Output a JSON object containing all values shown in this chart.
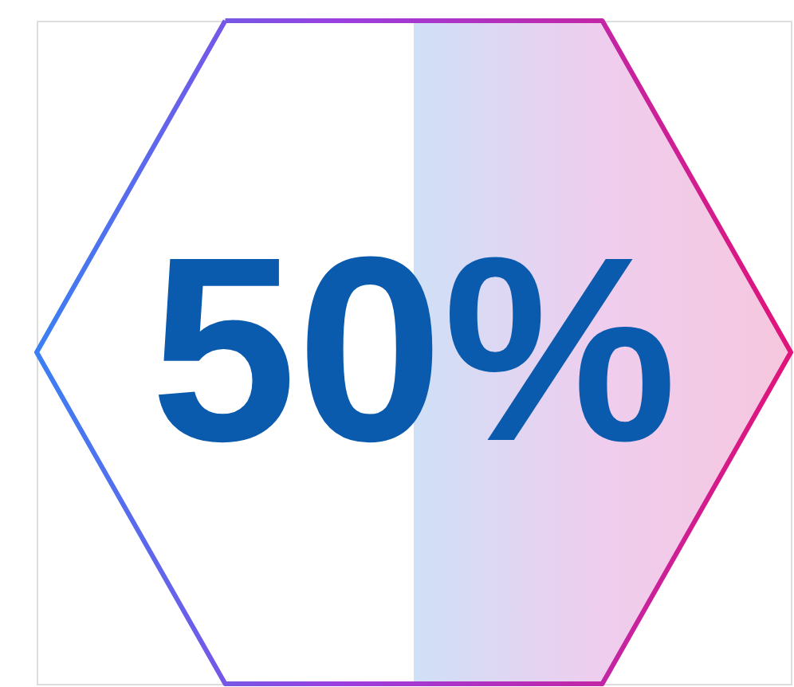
{
  "chart_data": {
    "type": "other",
    "values": [
      50
    ],
    "value_labels": [
      "50%"
    ]
  }
}
